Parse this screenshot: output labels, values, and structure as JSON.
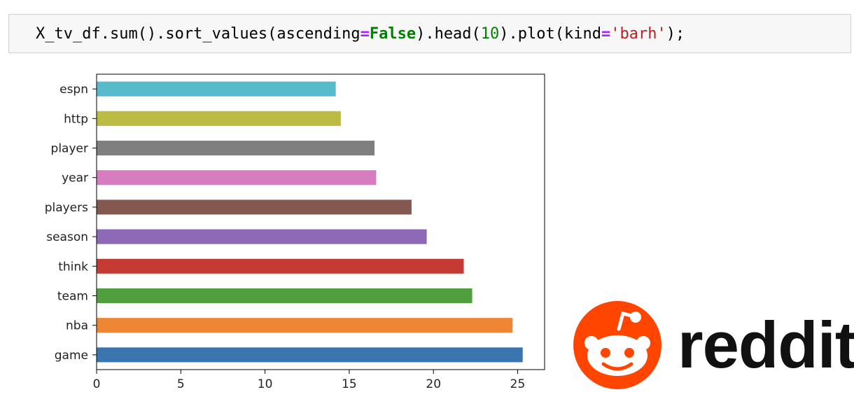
{
  "code_cell": {
    "tokens": [
      {
        "text": "X_tv_df.sum().sort_values(ascending",
        "kind": "plain"
      },
      {
        "text": "=",
        "kind": "op"
      },
      {
        "text": "False",
        "kind": "kw"
      },
      {
        "text": ").head(",
        "kind": "plain"
      },
      {
        "text": "10",
        "kind": "num"
      },
      {
        "text": ").plot(kind",
        "kind": "plain"
      },
      {
        "text": "=",
        "kind": "op"
      },
      {
        "text": "'barh'",
        "kind": "str"
      },
      {
        "text": ");",
        "kind": "plain"
      }
    ]
  },
  "chart_data": {
    "type": "bar",
    "orientation": "horizontal",
    "categories": [
      "game",
      "nba",
      "team",
      "think",
      "season",
      "players",
      "year",
      "player",
      "http",
      "espn"
    ],
    "values": [
      25.3,
      24.7,
      22.3,
      21.8,
      19.6,
      18.7,
      16.6,
      16.5,
      14.5,
      14.2
    ],
    "colors": [
      "#3a75af",
      "#ef8636",
      "#519e3e",
      "#c53a32",
      "#8d69b8",
      "#84584e",
      "#d57dbf",
      "#7f7f7f",
      "#bcbc45",
      "#58bbcc"
    ],
    "xticks": [
      0,
      5,
      10,
      15,
      20,
      25
    ],
    "xlim": [
      0,
      26.6
    ],
    "title": "",
    "xlabel": "",
    "ylabel": "",
    "grid": false,
    "legend": false
  },
  "logo": {
    "name": "reddit-logo",
    "wordmark": "reddit",
    "brand_color": "#ff4500"
  }
}
